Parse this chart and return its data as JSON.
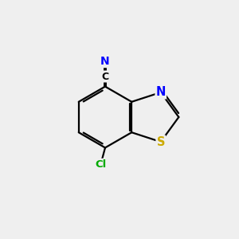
{
  "background_color": "#efefef",
  "bond_color": "#000000",
  "bond_width": 1.6,
  "atom_labels": {
    "N_thiazole": {
      "text": "N",
      "color": "#0000ff",
      "fontsize": 10.5,
      "fontweight": "bold"
    },
    "S_thiazole": {
      "text": "S",
      "color": "#ccaa00",
      "fontsize": 10.5,
      "fontweight": "bold"
    },
    "Cl": {
      "text": "Cl",
      "color": "#00aa00",
      "fontsize": 9.5,
      "fontweight": "bold"
    },
    "C_nitrile": {
      "text": "C",
      "color": "#000000",
      "fontsize": 9.0,
      "fontweight": "bold"
    },
    "N_nitrile": {
      "text": "N",
      "color": "#0000ff",
      "fontsize": 10.0,
      "fontweight": "bold"
    }
  },
  "figsize": [
    3.0,
    3.0
  ],
  "dpi": 100
}
